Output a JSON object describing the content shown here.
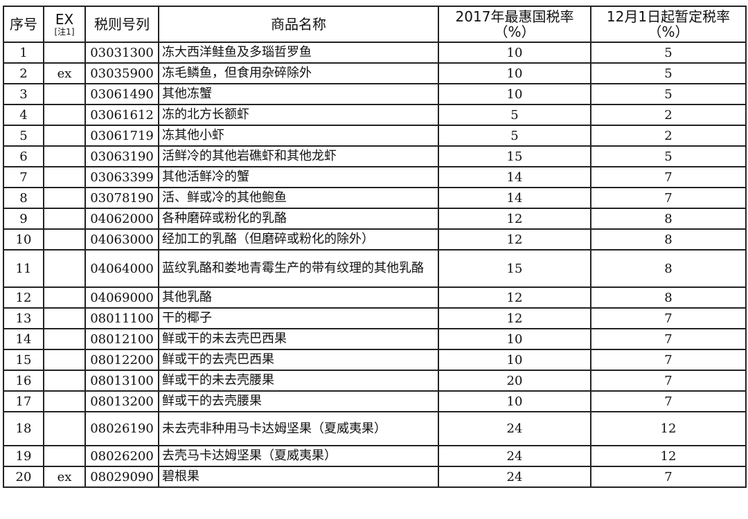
{
  "headers": {
    "seq": "序号",
    "ex": "EX",
    "ex_note": "[注1]",
    "code": "税则号列",
    "name": "商品名称",
    "mfn": "2017年最惠国税率（%）",
    "provisional": "12月1日起暂定税率（%）"
  },
  "rows": [
    {
      "seq": "1",
      "ex": "",
      "code": "03031300",
      "name": "冻大西洋鲑鱼及多瑙哲罗鱼",
      "mfn": "10",
      "prov": "5"
    },
    {
      "seq": "2",
      "ex": "ex",
      "code": "03035900",
      "name": "冻毛鳞鱼，但食用杂碎除外",
      "mfn": "10",
      "prov": "5"
    },
    {
      "seq": "3",
      "ex": "",
      "code": "03061490",
      "name": "其他冻蟹",
      "mfn": "10",
      "prov": "5"
    },
    {
      "seq": "4",
      "ex": "",
      "code": "03061612",
      "name": "冻的北方长额虾",
      "mfn": "5",
      "prov": "2"
    },
    {
      "seq": "5",
      "ex": "",
      "code": "03061719",
      "name": "冻其他小虾",
      "mfn": "5",
      "prov": "2"
    },
    {
      "seq": "6",
      "ex": "",
      "code": "03063190",
      "name": "活鲜冷的其他岩礁虾和其他龙虾",
      "mfn": "15",
      "prov": "5"
    },
    {
      "seq": "7",
      "ex": "",
      "code": "03063399",
      "name": "其他活鲜冷的蟹",
      "mfn": "14",
      "prov": "7"
    },
    {
      "seq": "8",
      "ex": "",
      "code": "03078190",
      "name": "活、鲜或冷的其他鲍鱼",
      "mfn": "14",
      "prov": "7"
    },
    {
      "seq": "9",
      "ex": "",
      "code": "04062000",
      "name": "各种磨碎或粉化的乳酪",
      "mfn": "12",
      "prov": "8"
    },
    {
      "seq": "10",
      "ex": "",
      "code": "04063000",
      "name": "经加工的乳酪（但磨碎或粉化的除外）",
      "mfn": "12",
      "prov": "8"
    },
    {
      "seq": "11",
      "ex": "",
      "code": "04064000",
      "name": "蓝纹乳酪和娄地青霉生产的带有纹理的其他乳酪",
      "mfn": "15",
      "prov": "8"
    },
    {
      "seq": "12",
      "ex": "",
      "code": "04069000",
      "name": "其他乳酪",
      "mfn": "12",
      "prov": "8"
    },
    {
      "seq": "13",
      "ex": "",
      "code": "08011100",
      "name": "干的椰子",
      "mfn": "12",
      "prov": "7"
    },
    {
      "seq": "14",
      "ex": "",
      "code": "08012100",
      "name": "鲜或干的未去壳巴西果",
      "mfn": "10",
      "prov": "7"
    },
    {
      "seq": "15",
      "ex": "",
      "code": "08012200",
      "name": "鲜或干的去壳巴西果",
      "mfn": "10",
      "prov": "7"
    },
    {
      "seq": "16",
      "ex": "",
      "code": "08013100",
      "name": "鲜或干的未去壳腰果",
      "mfn": "20",
      "prov": "7"
    },
    {
      "seq": "17",
      "ex": "",
      "code": "08013200",
      "name": "鲜或干的去壳腰果",
      "mfn": "10",
      "prov": "7"
    },
    {
      "seq": "18",
      "ex": "",
      "code": "08026190",
      "name": "未去壳非种用马卡达姆坚果（夏威夷果）",
      "mfn": "24",
      "prov": "12"
    },
    {
      "seq": "19",
      "ex": "",
      "code": "08026200",
      "name": "去壳马卡达姆坚果（夏威夷果）",
      "mfn": "24",
      "prov": "12"
    },
    {
      "seq": "20",
      "ex": "ex",
      "code": "08029090",
      "name": "碧根果",
      "mfn": "24",
      "prov": "7"
    }
  ]
}
